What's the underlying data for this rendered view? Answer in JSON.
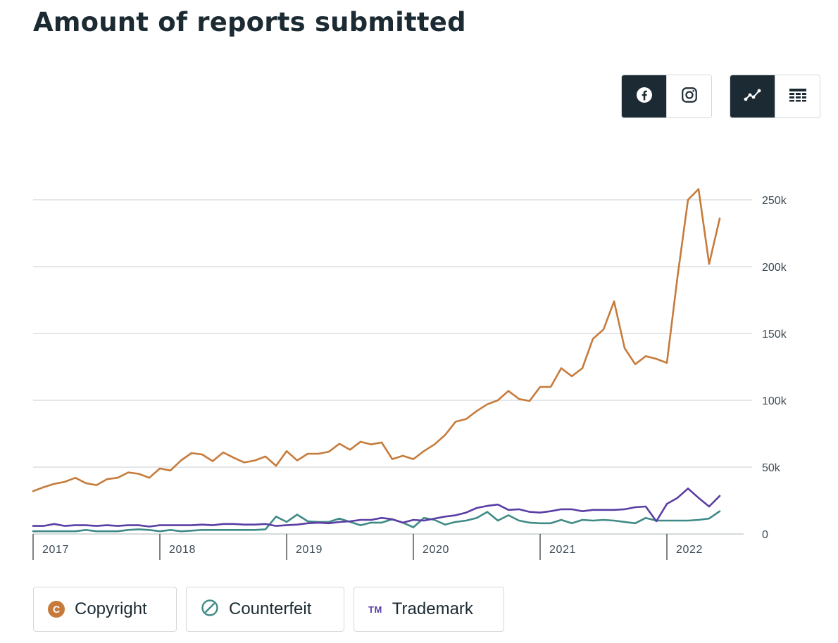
{
  "title": "Amount of reports submitted",
  "controls": {
    "platform": [
      {
        "name": "facebook-icon",
        "active": true
      },
      {
        "name": "instagram-icon",
        "active": false
      }
    ],
    "view": [
      {
        "name": "line-chart-icon",
        "active": true
      },
      {
        "name": "table-icon",
        "active": false
      }
    ]
  },
  "legend": [
    {
      "label": "Copyright",
      "icon": "copyright-icon",
      "color": "#c67b3b"
    },
    {
      "label": "Counterfeit",
      "icon": "counterfeit-icon",
      "color": "#3f8a86"
    },
    {
      "label": "Trademark",
      "icon": "trademark-icon",
      "icon_text": "TM",
      "color": "#5a3ea4"
    }
  ],
  "chart_data": {
    "type": "line",
    "title": "Amount of reports submitted",
    "x_unit": "month",
    "x_start": "2017-01",
    "x_tick_labels": [
      "2017",
      "2018",
      "2019",
      "2020",
      "2021",
      "2022"
    ],
    "y_tick_labels": [
      "0",
      "50k",
      "100k",
      "150k",
      "200k",
      "250k"
    ],
    "y_ticks": [
      0,
      50000,
      100000,
      150000,
      200000,
      250000
    ],
    "ylim": [
      0,
      260000
    ],
    "grid": true,
    "y_axis_side": "right",
    "series": [
      {
        "name": "Copyright",
        "color": "#c67b3b",
        "values": [
          32000,
          35000,
          37500,
          39000,
          42000,
          38000,
          36500,
          41000,
          42000,
          46000,
          45000,
          42000,
          49000,
          47500,
          55000,
          60500,
          59500,
          54500,
          61000,
          57000,
          53500,
          55000,
          58000,
          51000,
          62000,
          55000,
          60000,
          60000,
          61500,
          67500,
          63000,
          69000,
          67000,
          68500,
          56000,
          58500,
          56000,
          62000,
          67000,
          74000,
          84000,
          86000,
          92000,
          97000,
          100000,
          107000,
          101000,
          99500,
          110000,
          110000,
          124000,
          118000,
          124000,
          146000,
          153000,
          174000,
          139000,
          127000,
          133000,
          131000,
          128000,
          192000,
          250000,
          258000,
          202000,
          236000
        ]
      },
      {
        "name": "Counterfeit",
        "color": "#3f8a86",
        "values": [
          2000,
          2000,
          2000,
          2000,
          2000,
          3000,
          2000,
          2000,
          2000,
          3000,
          3500,
          3000,
          2000,
          3000,
          2000,
          2500,
          3000,
          3000,
          3000,
          3000,
          3000,
          3000,
          3500,
          13000,
          9000,
          14500,
          9500,
          9000,
          9000,
          11500,
          9000,
          6500,
          8500,
          8500,
          11000,
          8500,
          5000,
          12000,
          10500,
          7000,
          9000,
          10000,
          12000,
          16500,
          10000,
          14000,
          10000,
          8500,
          8000,
          8000,
          10500,
          8000,
          10500,
          10000,
          10500,
          10000,
          9000,
          8000,
          12000,
          10000,
          10000,
          10000,
          10000,
          10500,
          11500,
          17000
        ]
      },
      {
        "name": "Trademark",
        "color": "#5a3ea4",
        "values": [
          6000,
          6000,
          7500,
          6000,
          6500,
          6500,
          6000,
          6500,
          6000,
          6500,
          6500,
          5500,
          6500,
          6500,
          6500,
          6500,
          7000,
          6500,
          7500,
          7500,
          7000,
          7000,
          7500,
          6000,
          6500,
          7000,
          8000,
          8500,
          8000,
          9000,
          9500,
          10500,
          10500,
          12000,
          11000,
          8500,
          10500,
          10000,
          11500,
          13000,
          14000,
          16000,
          19500,
          21000,
          22000,
          18000,
          18500,
          16500,
          16000,
          17000,
          18500,
          18500,
          17000,
          18000,
          18000,
          18000,
          18500,
          20000,
          20500,
          9500,
          22500,
          27000,
          34000,
          27000,
          20500,
          28500
        ]
      }
    ]
  }
}
